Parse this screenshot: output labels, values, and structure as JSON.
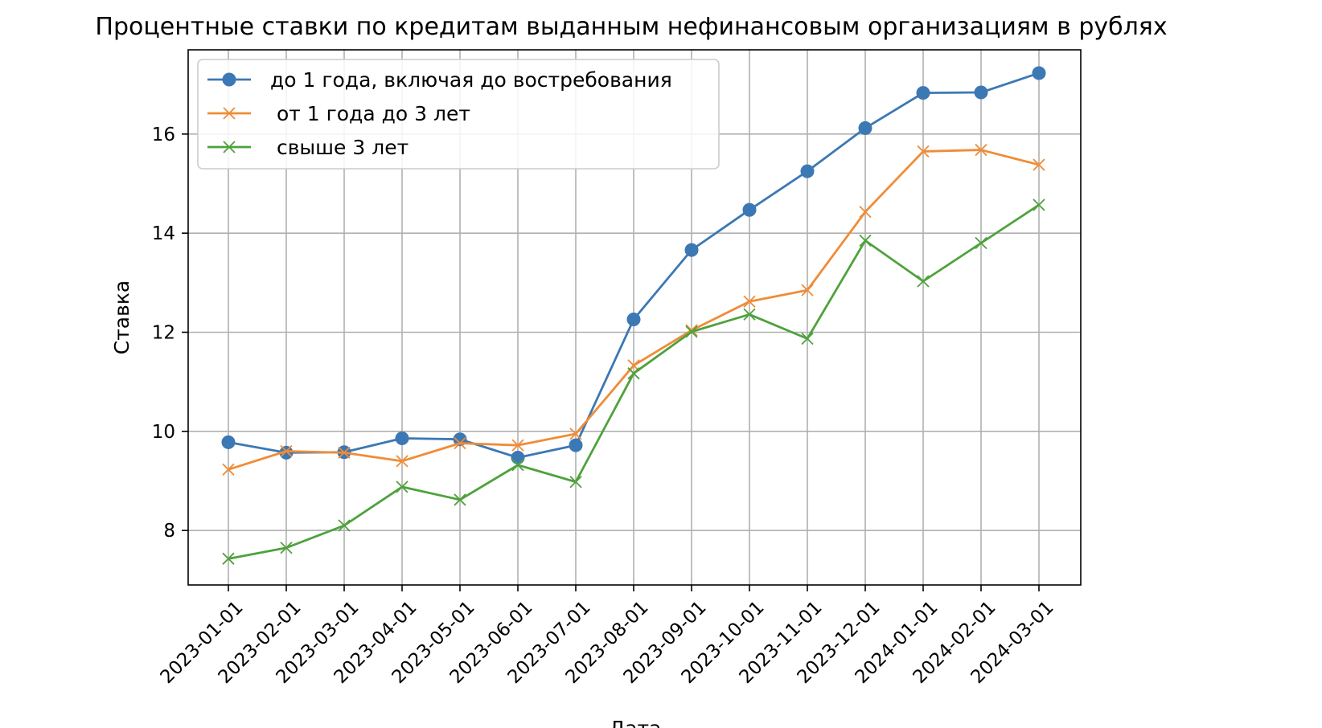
{
  "chart_data": {
    "type": "line",
    "title": "Процентные ставки по кредитам выданным нефинансовым организациям в рублях",
    "xlabel": "Дата",
    "ylabel": "Ставка",
    "x": [
      "2023-01-01",
      "2023-02-01",
      "2023-03-01",
      "2023-04-01",
      "2023-05-01",
      "2023-06-01",
      "2023-07-01",
      "2023-08-01",
      "2023-09-01",
      "2023-10-01",
      "2023-11-01",
      "2023-12-01",
      "2024-01-01",
      "2024-02-01",
      "2024-03-01"
    ],
    "ylim": [
      6.9,
      17.7
    ],
    "yticks": [
      8,
      10,
      12,
      14,
      16
    ],
    "grid": true,
    "legend_position": "upper-left",
    "series": [
      {
        "name": "до 1 года, включая до востребования",
        "color": "#3c78b4",
        "marker": "circle",
        "values": [
          9.78,
          9.57,
          9.58,
          9.86,
          9.84,
          9.47,
          9.72,
          12.26,
          13.66,
          14.47,
          15.25,
          16.12,
          16.83,
          16.84,
          17.23
        ]
      },
      {
        "name": " от 1 года до 3 лет",
        "color": "#f08c37",
        "marker": "x",
        "values": [
          9.23,
          9.6,
          9.57,
          9.4,
          9.76,
          9.72,
          9.95,
          11.33,
          12.04,
          12.62,
          12.85,
          14.43,
          15.65,
          15.68,
          15.38
        ]
      },
      {
        "name": " свыше 3 лет",
        "color": "#4ea23c",
        "marker": "x",
        "values": [
          7.43,
          7.65,
          8.1,
          8.88,
          8.62,
          9.32,
          8.98,
          11.17,
          12.01,
          12.36,
          11.87,
          13.85,
          13.03,
          13.8,
          14.57
        ]
      }
    ]
  }
}
